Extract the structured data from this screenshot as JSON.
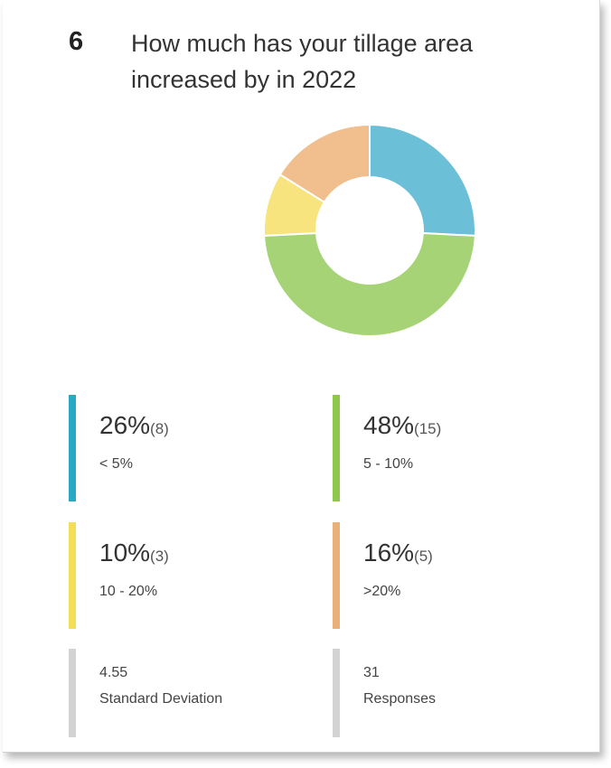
{
  "question": {
    "number": "6",
    "title": "How much has your tillage area increased by in 2022"
  },
  "chart_data": {
    "type": "pie",
    "variant": "donut",
    "categories": [
      "< 5%",
      "5 - 10%",
      "10 - 20%",
      ">20%"
    ],
    "values": [
      8,
      15,
      3,
      5
    ],
    "percent_labels": [
      "26%",
      "48%",
      "10%",
      "16%"
    ],
    "count_labels": [
      "(8)",
      "(15)",
      "(3)",
      "(5)"
    ],
    "colors": [
      "#6bbfd7",
      "#a6d376",
      "#f8e47e",
      "#f0bf8d"
    ],
    "bar_colors": [
      "#29a8c4",
      "#8cc84b",
      "#f3de56",
      "#eab07a"
    ],
    "legend_placement": "bottom"
  },
  "stats": {
    "std_dev_value": "4.55",
    "std_dev_label": "Standard Deviation",
    "responses_value": "31",
    "responses_label": "Responses",
    "bar_color": "#d3d3d3"
  }
}
